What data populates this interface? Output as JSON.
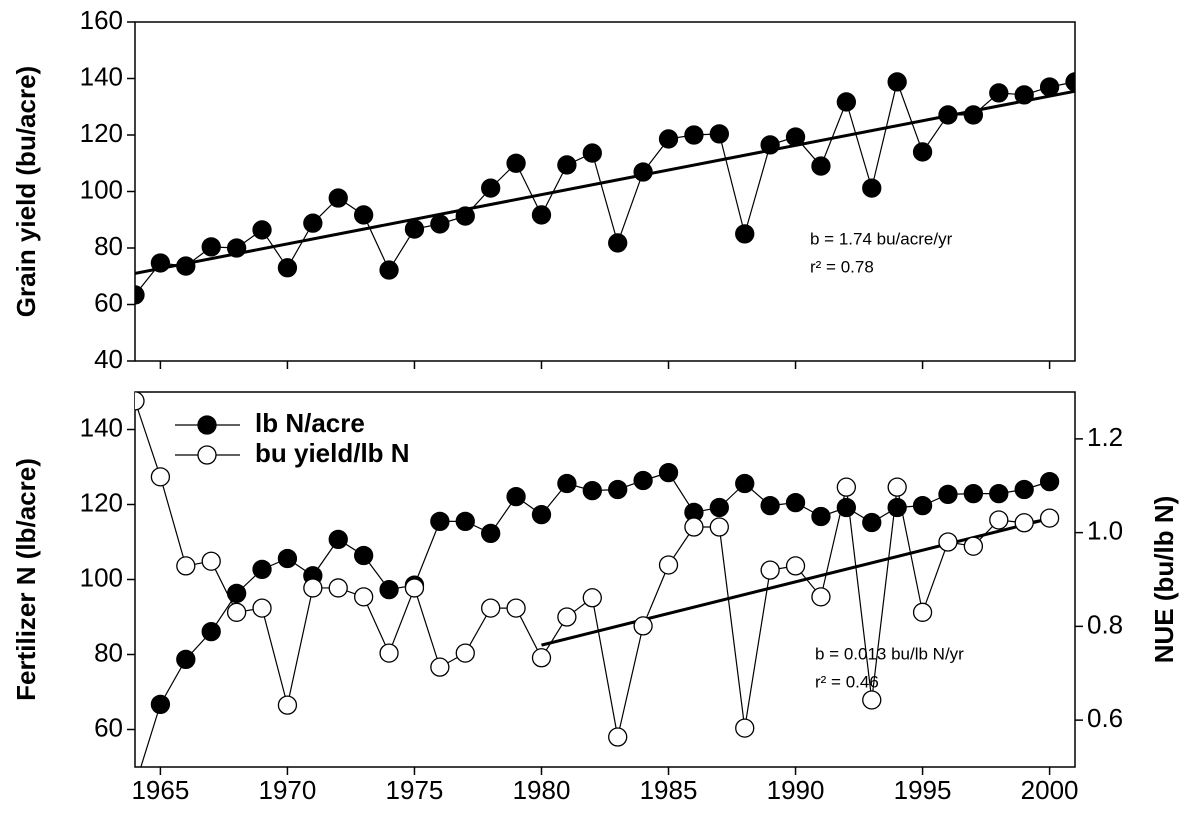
{
  "chart_data": [
    {
      "type": "line",
      "y_label": "Grain yield (bu/acre)",
      "xlim": [
        1964,
        2001
      ],
      "ylim": [
        40,
        160
      ],
      "yticks": [
        40,
        60,
        80,
        100,
        120,
        140,
        160
      ],
      "x": [
        1964,
        1965,
        1966,
        1967,
        1968,
        1969,
        1970,
        1971,
        1972,
        1973,
        1974,
        1975,
        1976,
        1977,
        1978,
        1979,
        1980,
        1981,
        1982,
        1983,
        1984,
        1985,
        1986,
        1987,
        1988,
        1989,
        1990,
        1991,
        1992,
        1993,
        1994,
        1995,
        1996,
        1997,
        1998,
        1999,
        2000,
        2001
      ],
      "series": [
        {
          "marker": "filled",
          "color": "#000000",
          "values": [
            63.4,
            74.7,
            73.6,
            80.4,
            80,
            86.4,
            73,
            88.8,
            97.7,
            91.7,
            72.2,
            86.7,
            88.5,
            91.3,
            101.2,
            110,
            91.7,
            109.4,
            113.6,
            81.8,
            106.9,
            118.6,
            120,
            120.4,
            85,
            116.5,
            119.3,
            109,
            131.7,
            101.2,
            138.8,
            114,
            127.1,
            127.1,
            134.9,
            134.2,
            137,
            138.8
          ]
        }
      ],
      "trend": {
        "x": [
          1964,
          2001
        ],
        "values": [
          71,
          135.5
        ]
      },
      "annotations": [
        "b = 1.74 bu/acre/yr",
        "r² = 0.78"
      ]
    },
    {
      "type": "line",
      "y_label": "Fertilizer N (lb/acre)",
      "y2_label": "NUE (bu/lb N)",
      "xlim": [
        1964,
        2001
      ],
      "xticks": [
        1965,
        1970,
        1975,
        1980,
        1985,
        1990,
        1995,
        2000
      ],
      "ylim": [
        50,
        150
      ],
      "yticks": [
        60,
        80,
        100,
        120,
        140
      ],
      "y2lim": [
        0.5,
        1.3
      ],
      "y2ticks": [
        0.6,
        0.8,
        {
          "value": 1,
          "label": "1.0"
        },
        1.2
      ],
      "x": [
        1964,
        1965,
        1966,
        1967,
        1968,
        1969,
        1970,
        1971,
        1972,
        1973,
        1974,
        1975,
        1976,
        1977,
        1978,
        1979,
        1980,
        1981,
        1982,
        1983,
        1984,
        1985,
        1986,
        1987,
        1988,
        1989,
        1990,
        1991,
        1992,
        1993,
        1994,
        1995,
        1996,
        1997,
        1998,
        1999,
        2000
      ],
      "series": [
        {
          "name": "lb N/acre",
          "marker": "filled",
          "color": "#000000",
          "values": [
            45,
            66.7,
            78.7,
            86.1,
            96.3,
            102.7,
            105.6,
            101,
            110.7,
            106.4,
            97.3,
            98.5,
            115.5,
            115.5,
            112.3,
            122.1,
            117.3,
            125.6,
            123.7,
            124,
            126.4,
            128.5,
            117.9,
            119.2,
            125.6,
            119.7,
            120.5,
            116.8,
            119.2,
            115.2,
            119.2,
            119.7,
            122.7,
            122.9,
            122.9,
            124,
            126.1
          ]
        },
        {
          "name": "bu yield/lb N",
          "marker": "open",
          "axis": "y2",
          "color": "#000000",
          "values": [
            1.281,
            1.119,
            0.929,
            0.939,
            0.83,
            0.839,
            0.632,
            0.882,
            0.882,
            0.863,
            0.743,
            0.882,
            0.713,
            0.743,
            0.839,
            0.839,
            0.733,
            0.82,
            0.861,
            0.564,
            0.801,
            0.931,
            1.012,
            1.012,
            0.583,
            0.92,
            0.929,
            0.863,
            1.097,
            0.643,
            1.097,
            0.83,
            0.98,
            0.971,
            1.027,
            1.021,
            1.031
          ]
        }
      ],
      "trend": {
        "x": [
          1980,
          2000
        ],
        "values": [
          0.76,
          1.03
        ],
        "axis": "y2"
      },
      "annotations": [
        "b = 0.013 bu/lb N/yr",
        "r² = 0.46"
      ]
    }
  ]
}
